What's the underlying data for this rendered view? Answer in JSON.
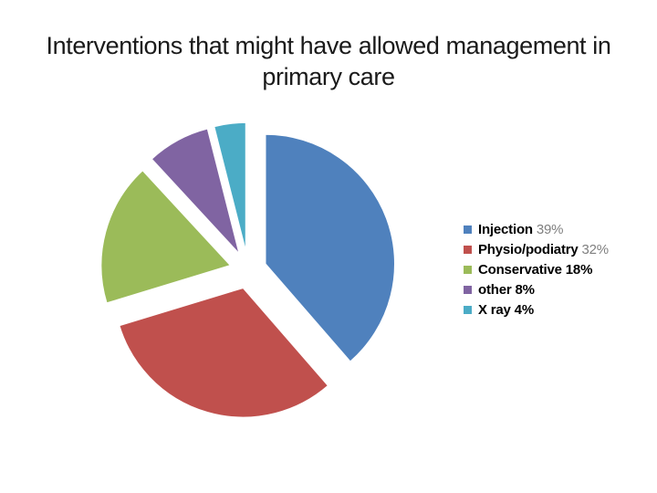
{
  "slide": {
    "title_line1": "Interventions that might have allowed management in",
    "title_line2": "primary care",
    "background_color": "#ffffff",
    "title_color": "#1a1a1a"
  },
  "chart_data": {
    "type": "pie",
    "title": "Interventions that might have allowed management in primary care",
    "exploded": true,
    "start_angle_deg": 0,
    "direction": "clockwise",
    "legend_position": "right",
    "grid": false,
    "categories": [
      "Injection",
      "Physio/podiatry",
      "Conservative",
      "other",
      "X ray"
    ],
    "values": [
      39,
      32,
      18,
      8,
      4
    ],
    "slices": [
      {
        "label": "Injection",
        "pct": 39,
        "pct_label": "39%",
        "legend_label": "Injection 39%",
        "color": "#4F81BD",
        "value_muted": true
      },
      {
        "label": "Physio/podiatry",
        "pct": 32,
        "pct_label": "32%",
        "legend_label": "Physio/podiatry 32%",
        "color": "#C0504D",
        "value_muted": true
      },
      {
        "label": "Conservative",
        "pct": 18,
        "pct_label": "18%",
        "legend_label": "Conservative 18%",
        "color": "#9BBB59",
        "value_muted": false
      },
      {
        "label": "other",
        "pct": 8,
        "pct_label": "8%",
        "legend_label": "other 8%",
        "color": "#8064A2",
        "value_muted": false
      },
      {
        "label": "X ray",
        "pct": 4,
        "pct_label": "4%",
        "legend_label": "X ray 4%",
        "color": "#4BACC6",
        "value_muted": false
      }
    ]
  }
}
